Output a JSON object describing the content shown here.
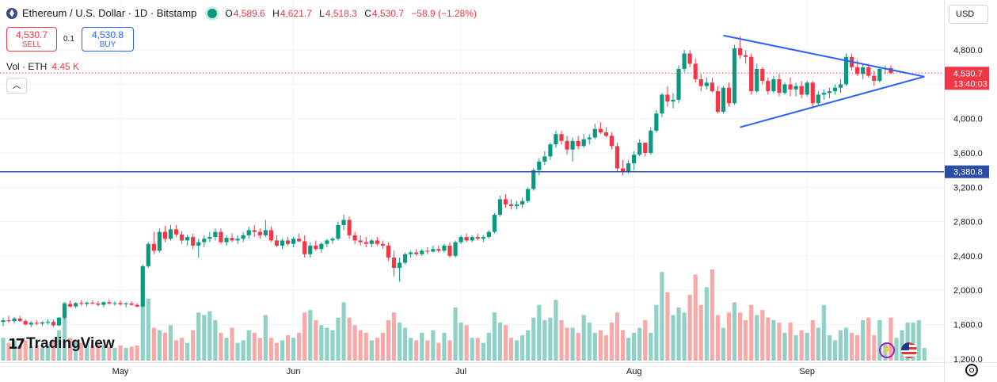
{
  "header": {
    "title": "Ethereum / U.S. Dollar · 1D · Bitstamp",
    "ohlc": [
      {
        "label": "O",
        "value": "4,589.6"
      },
      {
        "label": "H",
        "value": "4,621.7"
      },
      {
        "label": "L",
        "value": "4,518.3"
      },
      {
        "label": "C",
        "value": "4,530.7"
      }
    ],
    "change": "−58.9 (−1.28%)"
  },
  "trade": {
    "sell_price": "4,530.7",
    "sell_label": "SELL",
    "spread": "0.1",
    "buy_price": "4,530.8",
    "buy_label": "BUY"
  },
  "volume": {
    "label": "Vol · ETH",
    "value": "4.45 K"
  },
  "currency": "USD",
  "brand": "TradingView",
  "colors": {
    "up": "#089981",
    "down": "#f23645",
    "up_vol": "#8fd1c5",
    "down_vol": "#f7a9a7",
    "trendline": "#2962ff",
    "level": "#2a4ea8"
  },
  "chart_data": {
    "type": "candlestick",
    "y_ticks": [
      "1,200.0",
      "1,600.0",
      "2,000.0",
      "2,400.0",
      "2,800.0",
      "3,200.0",
      "3,600.0",
      "4,000.0",
      "4,400.0",
      "4,800.0"
    ],
    "ylim": [
      1050,
      5180
    ],
    "x_labels": [
      {
        "label": "May",
        "index": 21
      },
      {
        "label": "Jun",
        "index": 52
      },
      {
        "label": "Jul",
        "index": 82
      },
      {
        "label": "Aug",
        "index": 113
      },
      {
        "label": "Sep",
        "index": 144
      }
    ],
    "horizontal_level": {
      "value": 3380.8,
      "label": "3,380.8"
    },
    "last_price": {
      "value": 4530.7,
      "label": "4,530.7",
      "countdown": "13:40:03"
    },
    "triangle": {
      "upper": [
        [
          129,
          4970
        ],
        [
          165,
          4490
        ]
      ],
      "lower": [
        [
          132,
          3900
        ],
        [
          165,
          4490
        ]
      ]
    },
    "candles": [
      [
        1630,
        1680,
        1580,
        1650
      ],
      [
        1650,
        1700,
        1620,
        1640
      ],
      [
        1640,
        1690,
        1610,
        1670
      ],
      [
        1670,
        1700,
        1630,
        1640
      ],
      [
        1640,
        1660,
        1590,
        1600
      ],
      [
        1600,
        1640,
        1570,
        1620
      ],
      [
        1620,
        1650,
        1590,
        1610
      ],
      [
        1610,
        1640,
        1580,
        1625
      ],
      [
        1625,
        1660,
        1600,
        1630
      ],
      [
        1630,
        1660,
        1570,
        1590
      ],
      [
        1590,
        1690,
        1580,
        1680
      ],
      [
        1680,
        1860,
        1660,
        1840
      ],
      [
        1840,
        1880,
        1800,
        1810
      ],
      [
        1810,
        1860,
        1790,
        1850
      ],
      [
        1850,
        1880,
        1820,
        1840
      ],
      [
        1840,
        1870,
        1810,
        1855
      ],
      [
        1855,
        1880,
        1830,
        1845
      ],
      [
        1845,
        1870,
        1810,
        1830
      ],
      [
        1830,
        1870,
        1800,
        1860
      ],
      [
        1860,
        1890,
        1830,
        1845
      ],
      [
        1845,
        1870,
        1820,
        1850
      ],
      [
        1850,
        1880,
        1820,
        1835
      ],
      [
        1835,
        1860,
        1800,
        1845
      ],
      [
        1845,
        1870,
        1820,
        1830
      ],
      [
        1830,
        1850,
        1800,
        1810
      ],
      [
        1810,
        2300,
        1800,
        2280
      ],
      [
        2280,
        2560,
        2260,
        2540
      ],
      [
        2540,
        2680,
        2420,
        2460
      ],
      [
        2460,
        2720,
        2440,
        2680
      ],
      [
        2680,
        2750,
        2560,
        2600
      ],
      [
        2600,
        2760,
        2580,
        2710
      ],
      [
        2710,
        2760,
        2620,
        2650
      ],
      [
        2650,
        2690,
        2540,
        2580
      ],
      [
        2580,
        2650,
        2520,
        2620
      ],
      [
        2620,
        2660,
        2480,
        2520
      ],
      [
        2520,
        2600,
        2380,
        2560
      ],
      [
        2560,
        2640,
        2500,
        2600
      ],
      [
        2600,
        2680,
        2560,
        2620
      ],
      [
        2620,
        2720,
        2580,
        2680
      ],
      [
        2680,
        2720,
        2540,
        2560
      ],
      [
        2560,
        2640,
        2520,
        2610
      ],
      [
        2610,
        2660,
        2560,
        2580
      ],
      [
        2580,
        2640,
        2540,
        2600
      ],
      [
        2600,
        2680,
        2560,
        2640
      ],
      [
        2640,
        2740,
        2600,
        2700
      ],
      [
        2700,
        2760,
        2620,
        2680
      ],
      [
        2680,
        2720,
        2600,
        2640
      ],
      [
        2640,
        2820,
        2620,
        2700
      ],
      [
        2700,
        2740,
        2560,
        2580
      ],
      [
        2580,
        2640,
        2500,
        2520
      ],
      [
        2520,
        2600,
        2480,
        2580
      ],
      [
        2580,
        2620,
        2520,
        2540
      ],
      [
        2540,
        2620,
        2500,
        2600
      ],
      [
        2600,
        2660,
        2560,
        2570
      ],
      [
        2570,
        2640,
        2380,
        2420
      ],
      [
        2420,
        2560,
        2380,
        2520
      ],
      [
        2520,
        2580,
        2460,
        2480
      ],
      [
        2480,
        2560,
        2440,
        2540
      ],
      [
        2540,
        2600,
        2500,
        2580
      ],
      [
        2580,
        2620,
        2540,
        2600
      ],
      [
        2600,
        2800,
        2580,
        2760
      ],
      [
        2760,
        2880,
        2700,
        2820
      ],
      [
        2820,
        2860,
        2600,
        2640
      ],
      [
        2640,
        2680,
        2540,
        2580
      ],
      [
        2580,
        2640,
        2520,
        2560
      ],
      [
        2560,
        2620,
        2500,
        2540
      ],
      [
        2540,
        2600,
        2500,
        2580
      ],
      [
        2580,
        2620,
        2520,
        2540
      ],
      [
        2540,
        2580,
        2480,
        2520
      ],
      [
        2520,
        2560,
        2340,
        2380
      ],
      [
        2380,
        2460,
        2160,
        2260
      ],
      [
        2260,
        2380,
        2100,
        2320
      ],
      [
        2320,
        2440,
        2300,
        2420
      ],
      [
        2420,
        2460,
        2380,
        2440
      ],
      [
        2440,
        2480,
        2400,
        2420
      ],
      [
        2420,
        2480,
        2400,
        2460
      ],
      [
        2460,
        2500,
        2420,
        2450
      ],
      [
        2450,
        2520,
        2440,
        2480
      ],
      [
        2480,
        2520,
        2440,
        2460
      ],
      [
        2460,
        2540,
        2440,
        2520
      ],
      [
        2520,
        2560,
        2380,
        2400
      ],
      [
        2400,
        2580,
        2380,
        2560
      ],
      [
        2560,
        2640,
        2540,
        2620
      ],
      [
        2620,
        2660,
        2560,
        2580
      ],
      [
        2580,
        2640,
        2560,
        2620
      ],
      [
        2620,
        2660,
        2580,
        2600
      ],
      [
        2600,
        2640,
        2560,
        2620
      ],
      [
        2620,
        2700,
        2600,
        2680
      ],
      [
        2680,
        2900,
        2660,
        2880
      ],
      [
        2880,
        3100,
        2860,
        3060
      ],
      [
        3060,
        3120,
        2960,
        3000
      ],
      [
        3000,
        3060,
        2940,
        2980
      ],
      [
        2980,
        3040,
        2940,
        3000
      ],
      [
        3000,
        3080,
        2960,
        3040
      ],
      [
        3040,
        3200,
        3020,
        3180
      ],
      [
        3180,
        3420,
        3160,
        3400
      ],
      [
        3400,
        3540,
        3340,
        3500
      ],
      [
        3500,
        3620,
        3460,
        3560
      ],
      [
        3560,
        3720,
        3520,
        3700
      ],
      [
        3700,
        3860,
        3660,
        3820
      ],
      [
        3820,
        3860,
        3700,
        3740
      ],
      [
        3740,
        3800,
        3580,
        3640
      ],
      [
        3640,
        3780,
        3500,
        3740
      ],
      [
        3740,
        3800,
        3640,
        3680
      ],
      [
        3680,
        3820,
        3660,
        3760
      ],
      [
        3760,
        3820,
        3700,
        3780
      ],
      [
        3780,
        3940,
        3760,
        3880
      ],
      [
        3880,
        3960,
        3820,
        3840
      ],
      [
        3840,
        3900,
        3780,
        3800
      ],
      [
        3800,
        3840,
        3640,
        3680
      ],
      [
        3680,
        3720,
        3380,
        3420
      ],
      [
        3420,
        3520,
        3340,
        3380
      ],
      [
        3380,
        3520,
        3360,
        3480
      ],
      [
        3480,
        3620,
        3400,
        3580
      ],
      [
        3580,
        3760,
        3560,
        3720
      ],
      [
        3720,
        3720,
        3560,
        3600
      ],
      [
        3600,
        3900,
        3580,
        3860
      ],
      [
        3860,
        4100,
        3840,
        4060
      ],
      [
        4060,
        4300,
        4020,
        4280
      ],
      [
        4280,
        4380,
        4140,
        4200
      ],
      [
        4200,
        4300,
        4120,
        4220
      ],
      [
        4220,
        4620,
        4180,
        4580
      ],
      [
        4580,
        4800,
        4540,
        4760
      ],
      [
        4760,
        4800,
        4600,
        4640
      ],
      [
        4640,
        4700,
        4420,
        4460
      ],
      [
        4460,
        4520,
        4320,
        4380
      ],
      [
        4380,
        4480,
        4340,
        4420
      ],
      [
        4420,
        4480,
        4300,
        4320
      ],
      [
        4320,
        4380,
        4060,
        4080
      ],
      [
        4080,
        4380,
        4060,
        4360
      ],
      [
        4360,
        4420,
        4140,
        4180
      ],
      [
        4180,
        4860,
        4160,
        4820
      ],
      [
        4820,
        4960,
        4700,
        4740
      ],
      [
        4740,
        4800,
        4640,
        4720
      ],
      [
        4720,
        4760,
        4280,
        4320
      ],
      [
        4320,
        4640,
        4300,
        4580
      ],
      [
        4580,
        4600,
        4400,
        4440
      ],
      [
        4440,
        4480,
        4280,
        4320
      ],
      [
        4320,
        4500,
        4300,
        4460
      ],
      [
        4460,
        4520,
        4260,
        4300
      ],
      [
        4300,
        4420,
        4280,
        4400
      ],
      [
        4400,
        4480,
        4260,
        4340
      ],
      [
        4340,
        4420,
        4260,
        4380
      ],
      [
        4380,
        4440,
        4240,
        4280
      ],
      [
        4280,
        4440,
        4260,
        4420
      ],
      [
        4420,
        4440,
        4120,
        4180
      ],
      [
        4180,
        4320,
        4160,
        4280
      ],
      [
        4280,
        4340,
        4220,
        4300
      ],
      [
        4300,
        4360,
        4240,
        4320
      ],
      [
        4320,
        4400,
        4280,
        4360
      ],
      [
        4360,
        4460,
        4300,
        4400
      ],
      [
        4400,
        4760,
        4380,
        4720
      ],
      [
        4720,
        4760,
        4560,
        4600
      ],
      [
        4600,
        4680,
        4500,
        4520
      ],
      [
        4520,
        4640,
        4460,
        4600
      ],
      [
        4600,
        4640,
        4480,
        4500
      ],
      [
        4500,
        4560,
        4380,
        4440
      ],
      [
        4440,
        4600,
        4420,
        4580
      ],
      [
        4580,
        4620,
        4520,
        4590
      ],
      [
        4590,
        4622,
        4518,
        4531
      ]
    ],
    "volumes": [
      1.8,
      1.4,
      1.6,
      1.2,
      1.6,
      1.1,
      1.2,
      1.0,
      1.2,
      1.6,
      2.4,
      4.6,
      1.8,
      1.6,
      1.4,
      1.3,
      1.2,
      1.4,
      1.2,
      1.1,
      1.0,
      1.2,
      1.0,
      1.1,
      1.2,
      4.4,
      4.9,
      2.6,
      2.4,
      2.2,
      2.8,
      1.6,
      1.8,
      1.4,
      2.4,
      3.8,
      3.6,
      3.9,
      3.2,
      2.2,
      1.8,
      2.6,
      1.4,
      1.6,
      2.4,
      2.2,
      1.8,
      3.6,
      1.8,
      1.4,
      1.6,
      2.0,
      1.8,
      2.2,
      3.8,
      4.0,
      3.2,
      2.8,
      2.6,
      2.4,
      3.4,
      4.6,
      3.4,
      2.8,
      2.4,
      2.2,
      1.6,
      1.8,
      2.2,
      3.2,
      3.8,
      3.0,
      2.6,
      1.8,
      1.6,
      2.2,
      1.6,
      2.4,
      1.4,
      2.2,
      1.6,
      4.2,
      3.0,
      2.8,
      1.8,
      1.8,
      1.4,
      2.2,
      3.8,
      3.0,
      2.8,
      1.8,
      1.6,
      2.0,
      2.4,
      3.4,
      4.4,
      3.2,
      3.4,
      4.8,
      3.2,
      2.6,
      2.6,
      2.2,
      3.6,
      3.0,
      2.2,
      2.4,
      2.0,
      3.0,
      3.8,
      2.4,
      1.8,
      2.2,
      2.6,
      3.2,
      2.2,
      4.4,
      7.0,
      5.4,
      3.6,
      4.2,
      3.8,
      5.2,
      6.8,
      4.4,
      5.8,
      7.2,
      3.6,
      2.6,
      3.8,
      4.6,
      3.8,
      3.2,
      4.4,
      3.6,
      4.0,
      3.4,
      3.2,
      3.0,
      2.2,
      3.0,
      2.0,
      2.4,
      2.2,
      3.2,
      2.6,
      4.4,
      2.0,
      1.6,
      2.4,
      2.6,
      2.2,
      2.0,
      3.2,
      3.4,
      2.0,
      3.2,
      1.4,
      3.4,
      1.8,
      2.4,
      3.0,
      3.0,
      3.2,
      1.0
    ]
  }
}
